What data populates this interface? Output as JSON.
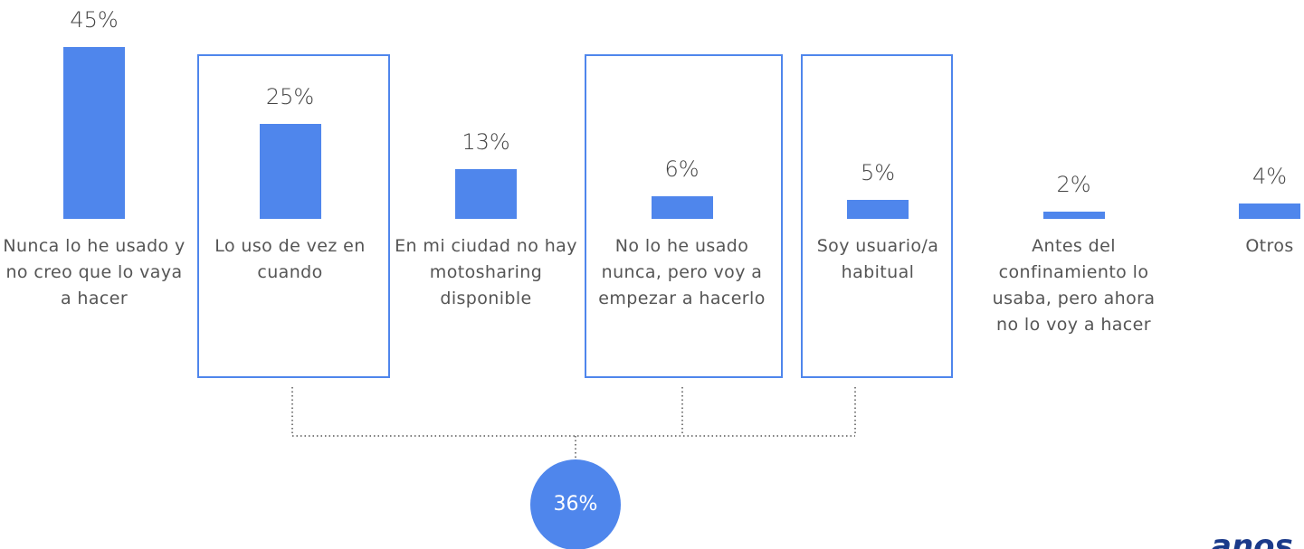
{
  "chart_data": {
    "type": "bar",
    "categories": [
      "Nunca lo he usado y no creo que lo vaya a hacer",
      "Lo uso de vez en cuando",
      "En mi ciudad no hay motosharing disponible",
      "No lo he usado nunca, pero voy a empezar a hacerlo",
      "Soy usuario/a habitual",
      "Antes del confinamiento lo usaba, pero ahora no lo voy a hacer",
      "Otros"
    ],
    "values": [
      45,
      25,
      13,
      6,
      5,
      2,
      4
    ],
    "value_labels": [
      "45%",
      "25%",
      "13%",
      "6%",
      "5%",
      "2%",
      "4%"
    ],
    "color": "#4f86ec",
    "annotation": {
      "value": 36,
      "label": "36%"
    },
    "logo": "anos"
  }
}
